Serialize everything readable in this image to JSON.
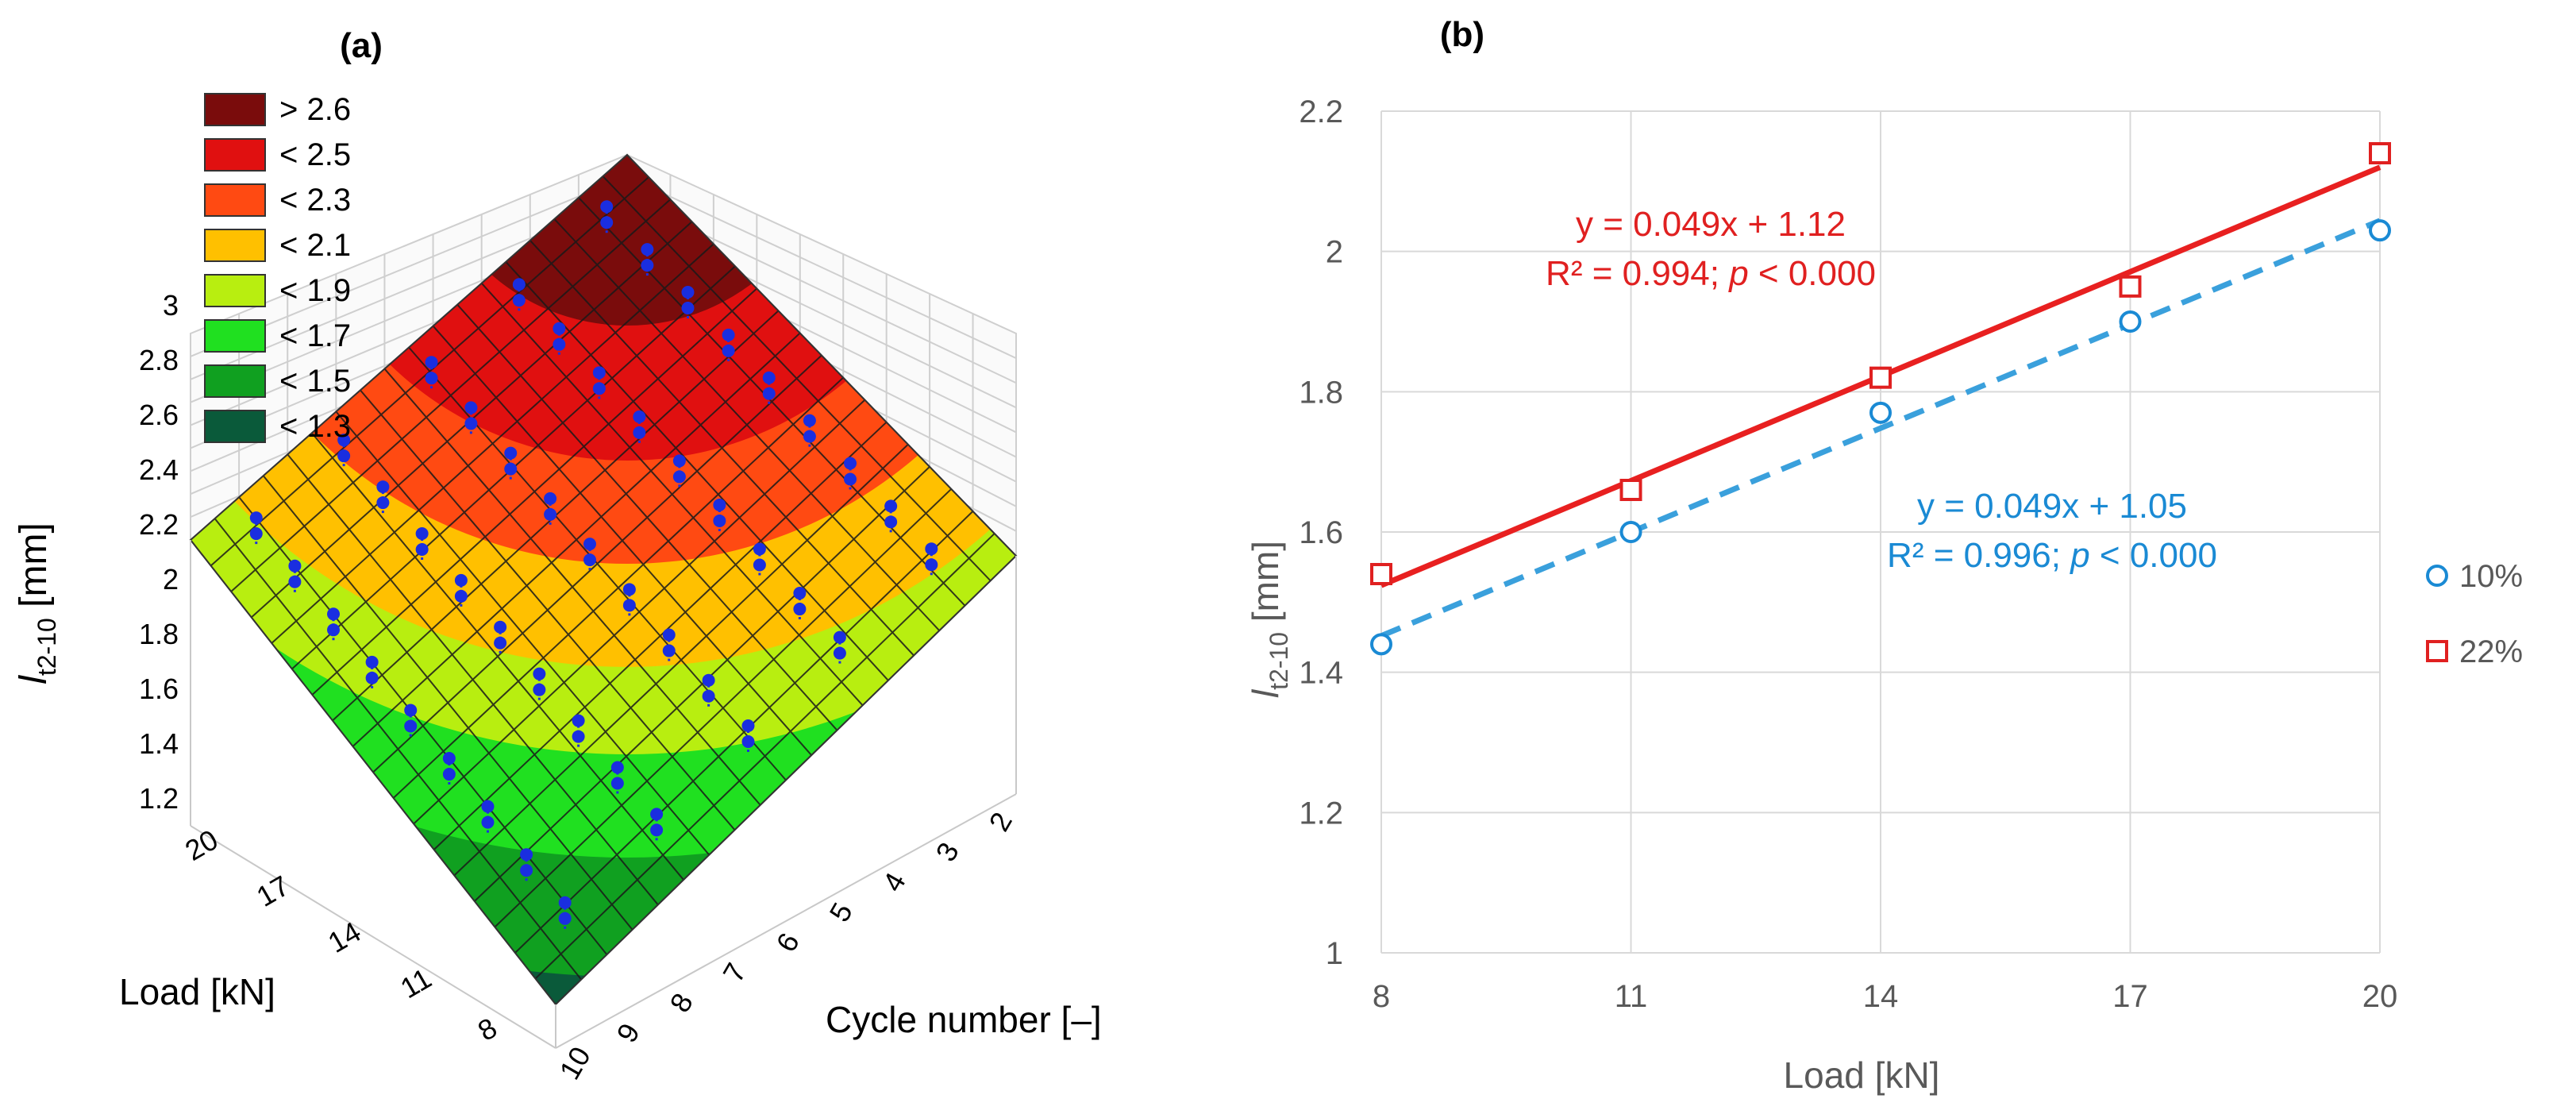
{
  "panel_a": {
    "label": "(a)",
    "legend": [
      {
        "label": "> 2.6",
        "color": "#7a0c0c"
      },
      {
        "label": "< 2.5",
        "color": "#e01010"
      },
      {
        "label": "< 2.3",
        "color": "#ff4a12"
      },
      {
        "label": "< 2.1",
        "color": "#ffc000"
      },
      {
        "label": "< 1.9",
        "color": "#b8ee10"
      },
      {
        "label": "< 1.7",
        "color": "#20e020"
      },
      {
        "label": "< 1.5",
        "color": "#10a020"
      },
      {
        "label": "< 1.3",
        "color": "#0a5a3a"
      }
    ],
    "z_label_main": "l",
    "z_label_sub": "t2-10",
    "z_label_unit": " [mm]",
    "z_ticks": [
      "3",
      "2.8",
      "2.6",
      "2.4",
      "2.2",
      "2",
      "1.8",
      "1.6",
      "1.4",
      "1.2"
    ],
    "load_label": "Load [kN]",
    "load_ticks": [
      "20",
      "17",
      "14",
      "11",
      "8"
    ],
    "cycle_label": "Cycle number [–]",
    "cycle_ticks": [
      "10",
      "9",
      "8",
      "7",
      "6",
      "5",
      "4",
      "3",
      "2"
    ],
    "marker_color": "#1a2ee0"
  },
  "chart_data": {
    "type": "scatter",
    "label": "(b)",
    "xlabel": "Load [kN]",
    "ylabel_main": "l",
    "ylabel_sub": "t2-10",
    "ylabel_unit": " [mm]",
    "xlim": [
      8,
      20
    ],
    "ylim": [
      1,
      2.2
    ],
    "x_ticks": [
      8,
      11,
      14,
      17,
      20
    ],
    "y_ticks": [
      "1",
      "1.2",
      "1.4",
      "1.6",
      "1.8",
      "2",
      "2.2"
    ],
    "grid": true,
    "legend_position": "right",
    "series": [
      {
        "name": "10%",
        "marker": "circle",
        "color": "#1a8ad4",
        "line_color": "#3aa0dc",
        "line_style": "dashed",
        "x": [
          8,
          11,
          14,
          17,
          20
        ],
        "y": [
          1.44,
          1.6,
          1.77,
          1.9,
          2.03
        ],
        "fit": {
          "slope": 0.049,
          "intercept": 1.05
        },
        "equation": "y = 0.049x + 1.05",
        "r2_text": "R² = 0.996; ",
        "p_label": "p",
        "p_text": " < 0.000"
      },
      {
        "name": "22%",
        "marker": "square",
        "color": "#e02020",
        "line_color": "#e82020",
        "line_style": "solid",
        "x": [
          8,
          11,
          14,
          17,
          20
        ],
        "y": [
          1.54,
          1.66,
          1.82,
          1.95,
          2.14
        ],
        "fit": {
          "slope": 0.049,
          "intercept": 1.12
        },
        "equation": "y = 0.049x + 1.12",
        "r2_text": "R² = 0.994; ",
        "p_label": "p",
        "p_text": " < 0.000"
      }
    ]
  }
}
